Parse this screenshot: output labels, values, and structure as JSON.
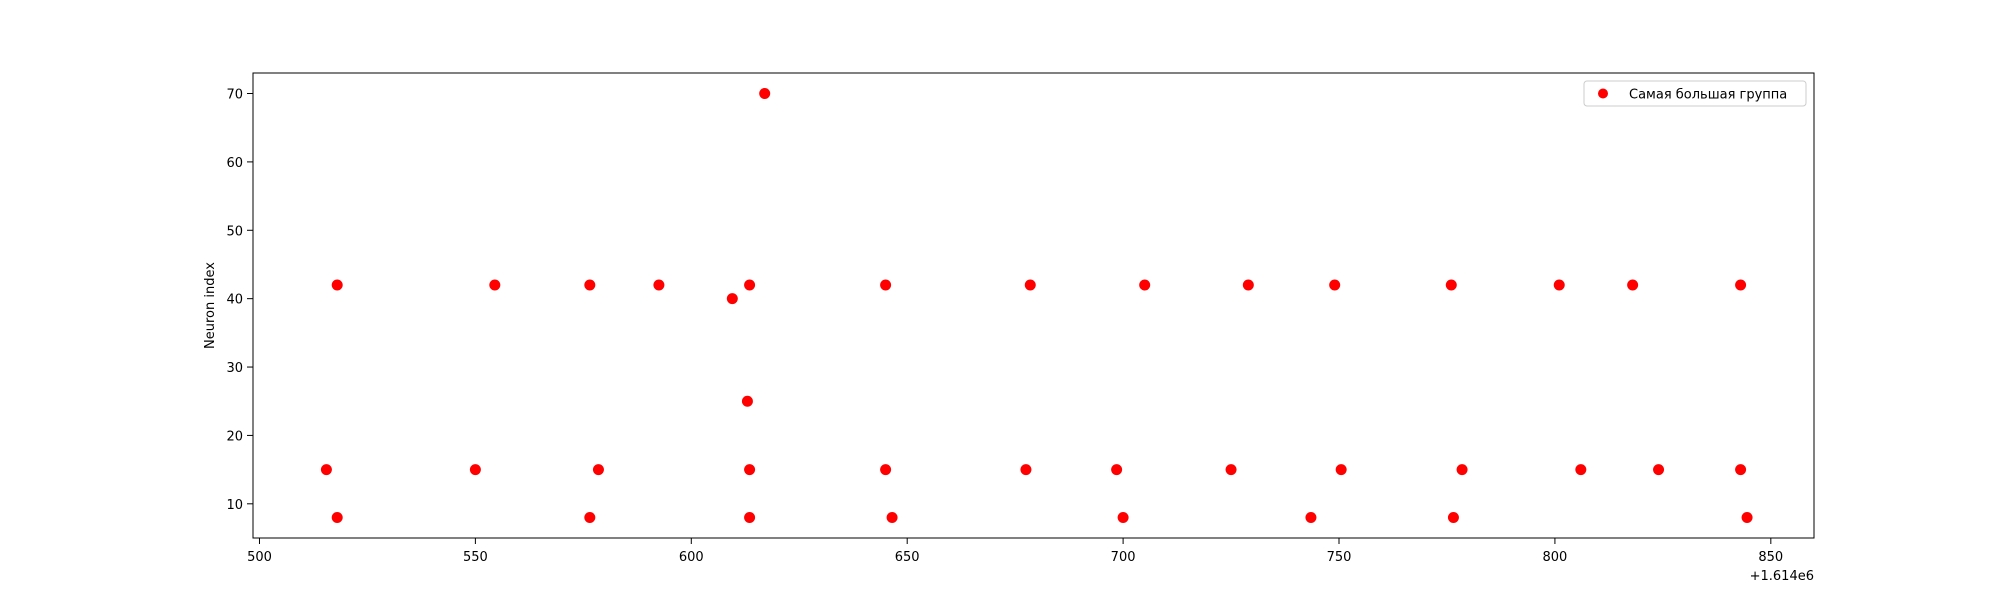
{
  "chart_data": {
    "type": "scatter",
    "title": "",
    "xlabel": "",
    "ylabel": "Neuron index",
    "x_offset_label": "+1.614e6",
    "x_ticks": [
      "500",
      "550",
      "600",
      "650",
      "700",
      "750",
      "800",
      "850"
    ],
    "y_ticks": [
      "10",
      "20",
      "30",
      "40",
      "50",
      "60",
      "70"
    ],
    "xlim": [
      1614498.5,
      1614860
    ],
    "ylim": [
      5,
      73
    ],
    "grid": false,
    "legend_position": "top-right",
    "colors": {
      "series": "#ff0000",
      "axes": "#000000"
    },
    "series": [
      {
        "name": "Самая большая группа",
        "points": [
          [
            1614515.5,
            15
          ],
          [
            1614518,
            42
          ],
          [
            1614518,
            8
          ],
          [
            1614550,
            15
          ],
          [
            1614554.5,
            42
          ],
          [
            1614576.5,
            42
          ],
          [
            1614576.5,
            8
          ],
          [
            1614578.5,
            15
          ],
          [
            1614592.5,
            42
          ],
          [
            1614609.5,
            40
          ],
          [
            1614613,
            25
          ],
          [
            1614613.5,
            42
          ],
          [
            1614613.5,
            15
          ],
          [
            1614613.5,
            8
          ],
          [
            1614617,
            70
          ],
          [
            1614645,
            42
          ],
          [
            1614645,
            15
          ],
          [
            1614646.5,
            8
          ],
          [
            1614677.5,
            15
          ],
          [
            1614678.5,
            42
          ],
          [
            1614698.5,
            15
          ],
          [
            1614700,
            8
          ],
          [
            1614705,
            42
          ],
          [
            1614725,
            15
          ],
          [
            1614729,
            42
          ],
          [
            1614743.5,
            8
          ],
          [
            1614749,
            42
          ],
          [
            1614750.5,
            15
          ],
          [
            1614776,
            42
          ],
          [
            1614776.5,
            8
          ],
          [
            1614778.5,
            15
          ],
          [
            1614801,
            42
          ],
          [
            1614806,
            15
          ],
          [
            1614818,
            42
          ],
          [
            1614824,
            15
          ],
          [
            1614843,
            42
          ],
          [
            1614843,
            15
          ],
          [
            1614844.5,
            8
          ]
        ]
      }
    ]
  }
}
